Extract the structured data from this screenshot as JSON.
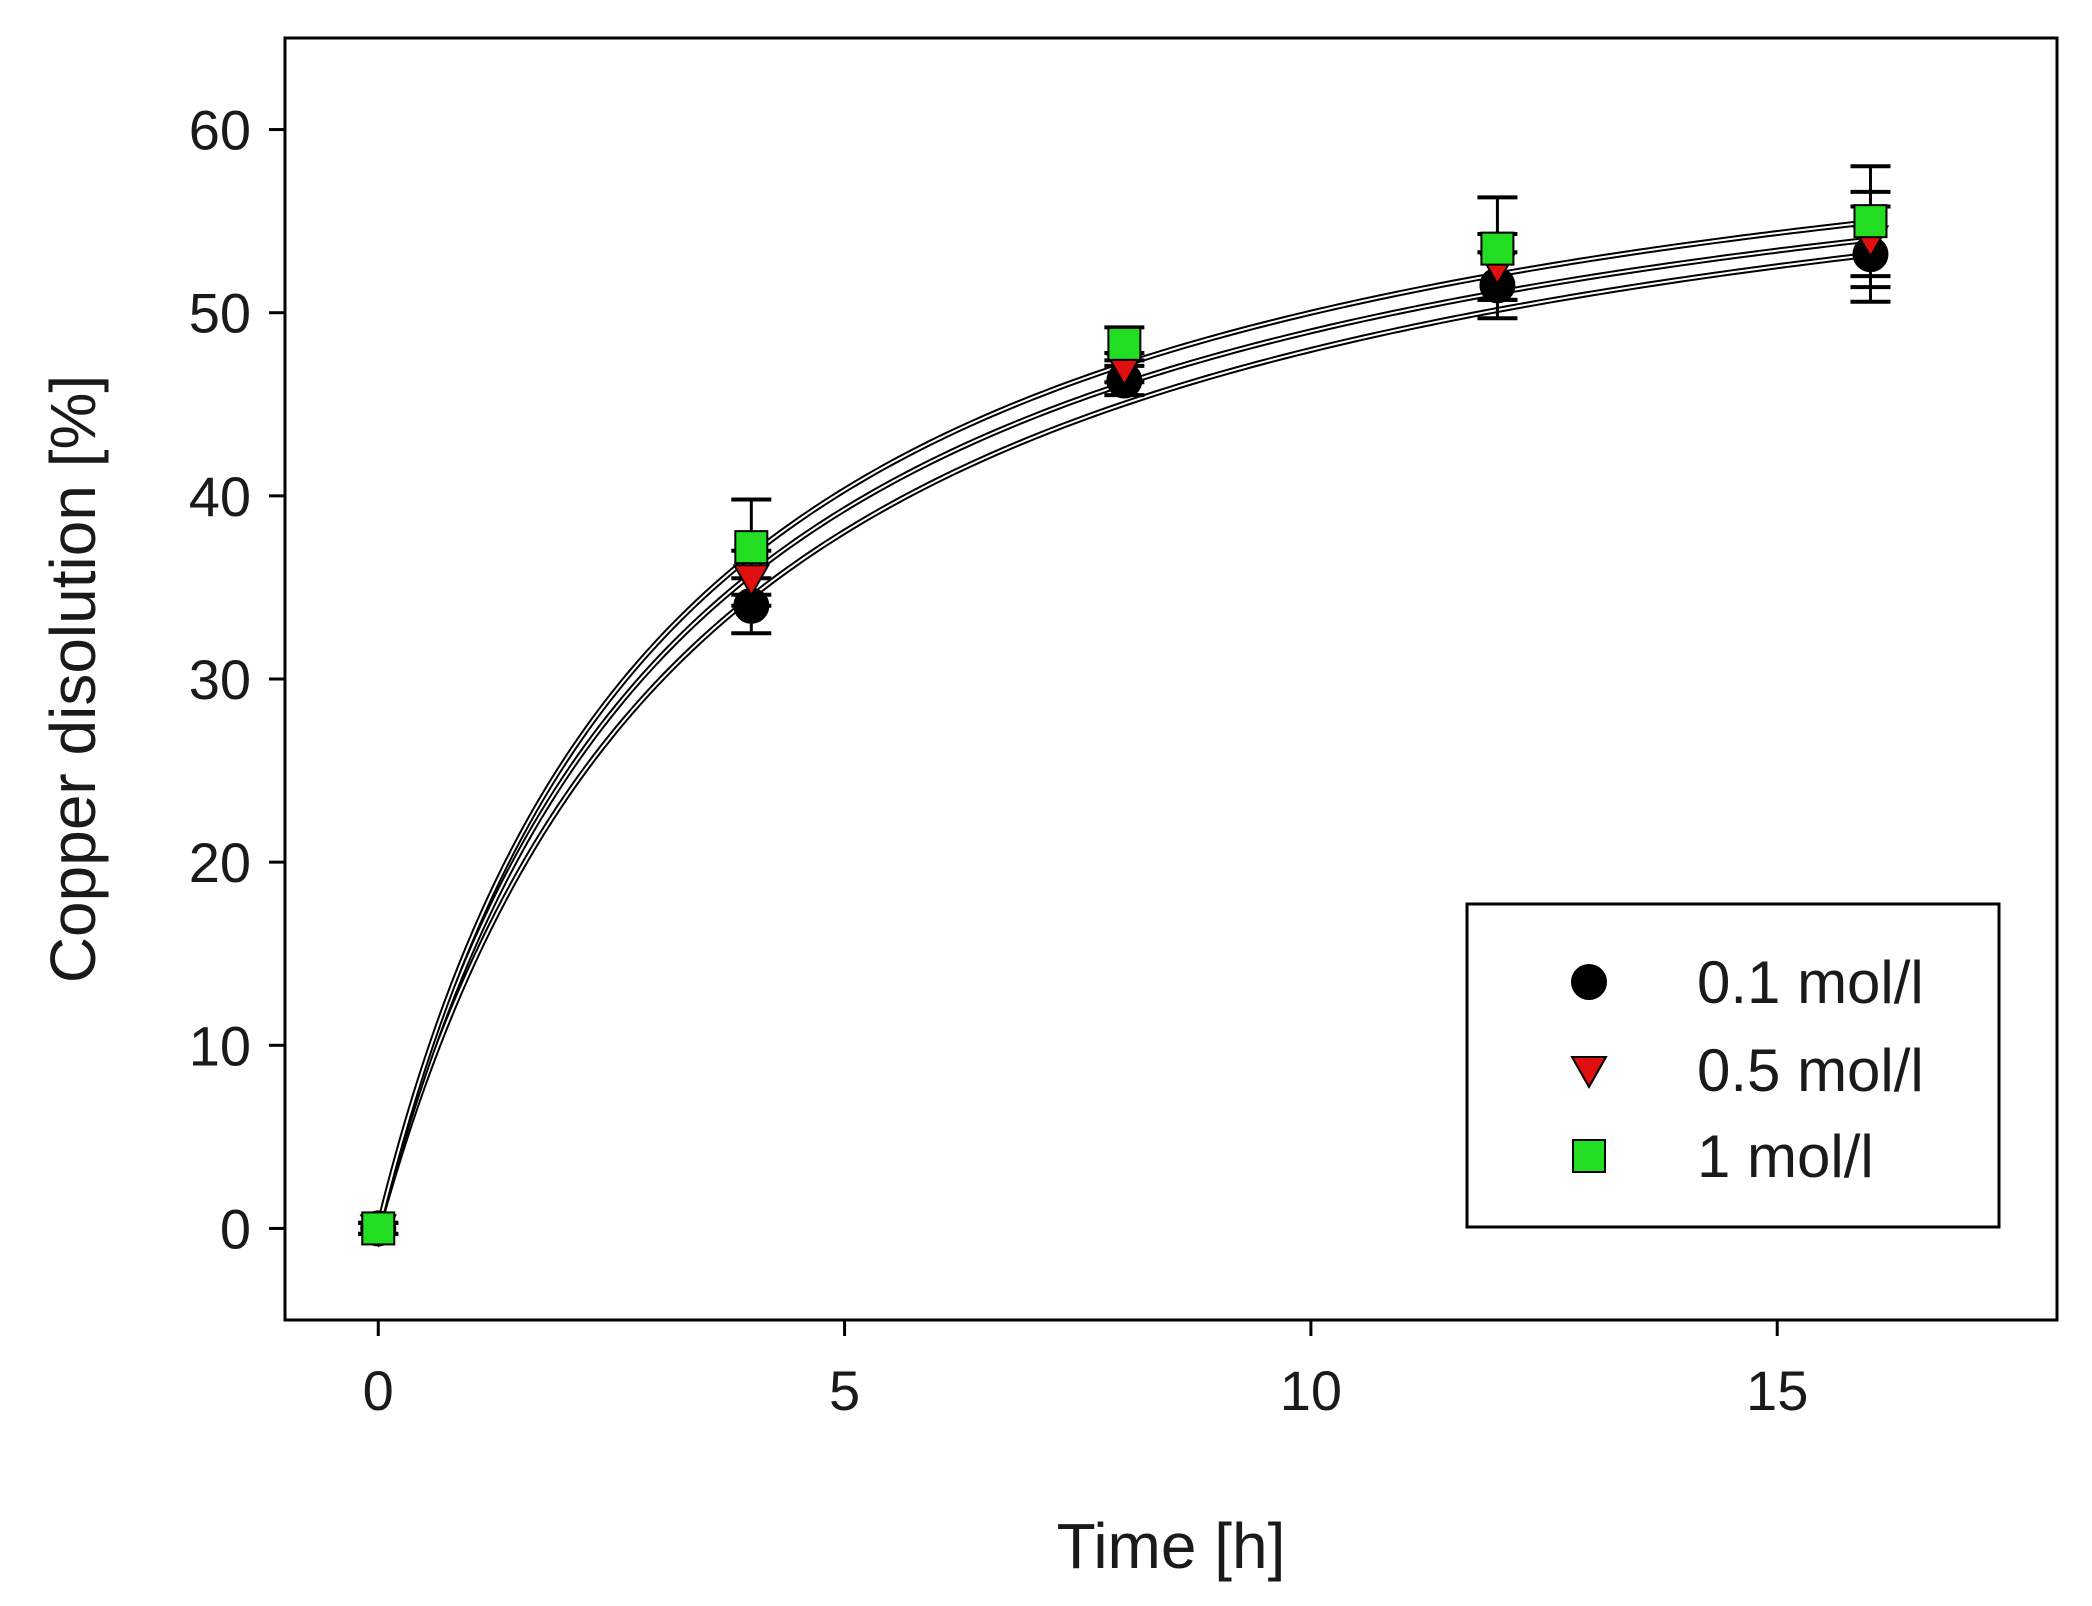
{
  "chart_data": {
    "type": "scatter",
    "title": "",
    "xlabel": "Time [h]",
    "ylabel": "Copper disolution [%]",
    "xlim": [
      -1,
      18
    ],
    "ylim": [
      -5,
      65
    ],
    "xticks": [
      0,
      5,
      10,
      15
    ],
    "yticks": [
      0,
      10,
      20,
      30,
      40,
      50,
      60
    ],
    "xtick_labels": [
      "0",
      "5",
      "10",
      "15"
    ],
    "ytick_labels": [
      "0",
      "10",
      "20",
      "30",
      "40",
      "50",
      "60"
    ],
    "grid": false,
    "legend_position": "bottom-right",
    "series": [
      {
        "name": "0.1 mol/l",
        "marker": "circle",
        "color": "#000000",
        "x": [
          0,
          4,
          8,
          12,
          16
        ],
        "y": [
          0,
          34.0,
          46.3,
          51.5,
          53.2
        ],
        "yerr": [
          0.3,
          1.5,
          0.8,
          1.8,
          2.6
        ],
        "fit": {
          "model": "a*t/(b+t)",
          "a": 64.9,
          "b": 3.53
        }
      },
      {
        "name": "0.5 mol/l",
        "marker": "triangle-down",
        "color": "#e01010",
        "x": [
          0,
          4,
          8,
          12,
          16
        ],
        "y": [
          0,
          35.5,
          47.0,
          52.5,
          54.0
        ],
        "yerr": [
          0.3,
          1.5,
          0.8,
          1.8,
          2.6
        ],
        "fit": {
          "model": "a*t/(b+t)",
          "a": 65.1,
          "b": 3.29
        }
      },
      {
        "name": "1 mol/l",
        "marker": "square",
        "color": "#22dd22",
        "x": [
          0,
          4,
          8,
          12,
          16
        ],
        "y": [
          0,
          37.2,
          48.3,
          53.5,
          55.0
        ],
        "yerr": [
          0.3,
          2.6,
          0.9,
          2.8,
          3.0
        ],
        "fit": {
          "model": "a*t/(b+t)",
          "a": 65.8,
          "b": 3.16
        }
      }
    ]
  }
}
